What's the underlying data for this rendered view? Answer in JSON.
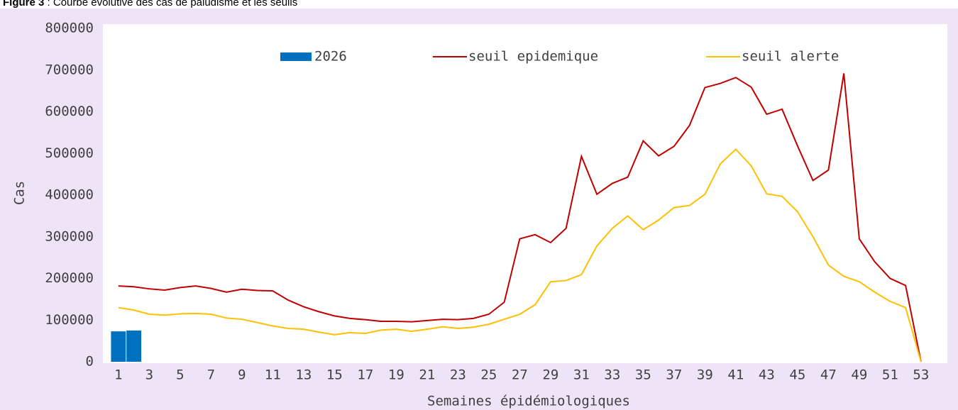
{
  "chart_data": {
    "type": "bar_line",
    "title_label": "Figure 3",
    "title": ": Courbe évolutive des cas de paludisme et les seuils",
    "xlabel": "Semaines épidémiologiques",
    "ylabel": "Cas",
    "categories": [
      1,
      null,
      3,
      null,
      5,
      null,
      7,
      null,
      9,
      null,
      11,
      null,
      13,
      null,
      15,
      null,
      17,
      null,
      19,
      null,
      21,
      null,
      23,
      null,
      25,
      null,
      27,
      null,
      29,
      null,
      31,
      null,
      33,
      null,
      35,
      null,
      37,
      null,
      39,
      null,
      41,
      null,
      43,
      null,
      45,
      null,
      47,
      null,
      49,
      null,
      51,
      null,
      53
    ],
    "ylim": [
      0,
      800000
    ],
    "yticks": [
      0,
      100000,
      200000,
      300000,
      400000,
      500000,
      600000,
      700000,
      800000
    ],
    "grid": false,
    "legend": "top",
    "series": [
      {
        "name": "2026",
        "type": "bar",
        "color": "#0070c0",
        "values": [
          73000,
          75000,
          null,
          null,
          null,
          null,
          null,
          null,
          null,
          null,
          null,
          null,
          null,
          null,
          null,
          null,
          null,
          null,
          null,
          null,
          null,
          null,
          null,
          null,
          null,
          null,
          null,
          null,
          null,
          null,
          null,
          null,
          null,
          null,
          null,
          null,
          null,
          null,
          null,
          null,
          null,
          null,
          null,
          null,
          null,
          null,
          null,
          null,
          null,
          null,
          null,
          null,
          null
        ]
      },
      {
        "name": "seuil epidemique",
        "type": "line",
        "color": "#c00000",
        "values": [
          182000,
          180000,
          175000,
          172000,
          178000,
          182000,
          176000,
          167000,
          174000,
          171000,
          170000,
          148000,
          132000,
          120000,
          110000,
          104000,
          101000,
          97000,
          97000,
          96000,
          99000,
          102000,
          101000,
          104000,
          114000,
          143000,
          295000,
          305000,
          286000,
          320000,
          493000,
          402000,
          428000,
          443000,
          530000,
          494000,
          517000,
          567000,
          658000,
          668000,
          682000,
          659000,
          594000,
          606000,
          518000,
          435000,
          460000,
          692000,
          295000,
          240000,
          200000,
          183000,
          0
        ]
      },
      {
        "name": "seuil alerte",
        "type": "line",
        "color": "#ffc000",
        "values": [
          130000,
          124000,
          114000,
          112000,
          115000,
          116000,
          114000,
          105000,
          102000,
          94000,
          86000,
          80000,
          78000,
          71000,
          65000,
          70000,
          68000,
          76000,
          78000,
          73000,
          78000,
          84000,
          80000,
          83000,
          90000,
          102000,
          114000,
          137000,
          192000,
          195000,
          209000,
          278000,
          320000,
          350000,
          317000,
          340000,
          370000,
          375000,
          402000,
          475000,
          510000,
          470000,
          403000,
          397000,
          360000,
          300000,
          232000,
          205000,
          192000,
          167000,
          145000,
          130000,
          0
        ]
      }
    ]
  }
}
